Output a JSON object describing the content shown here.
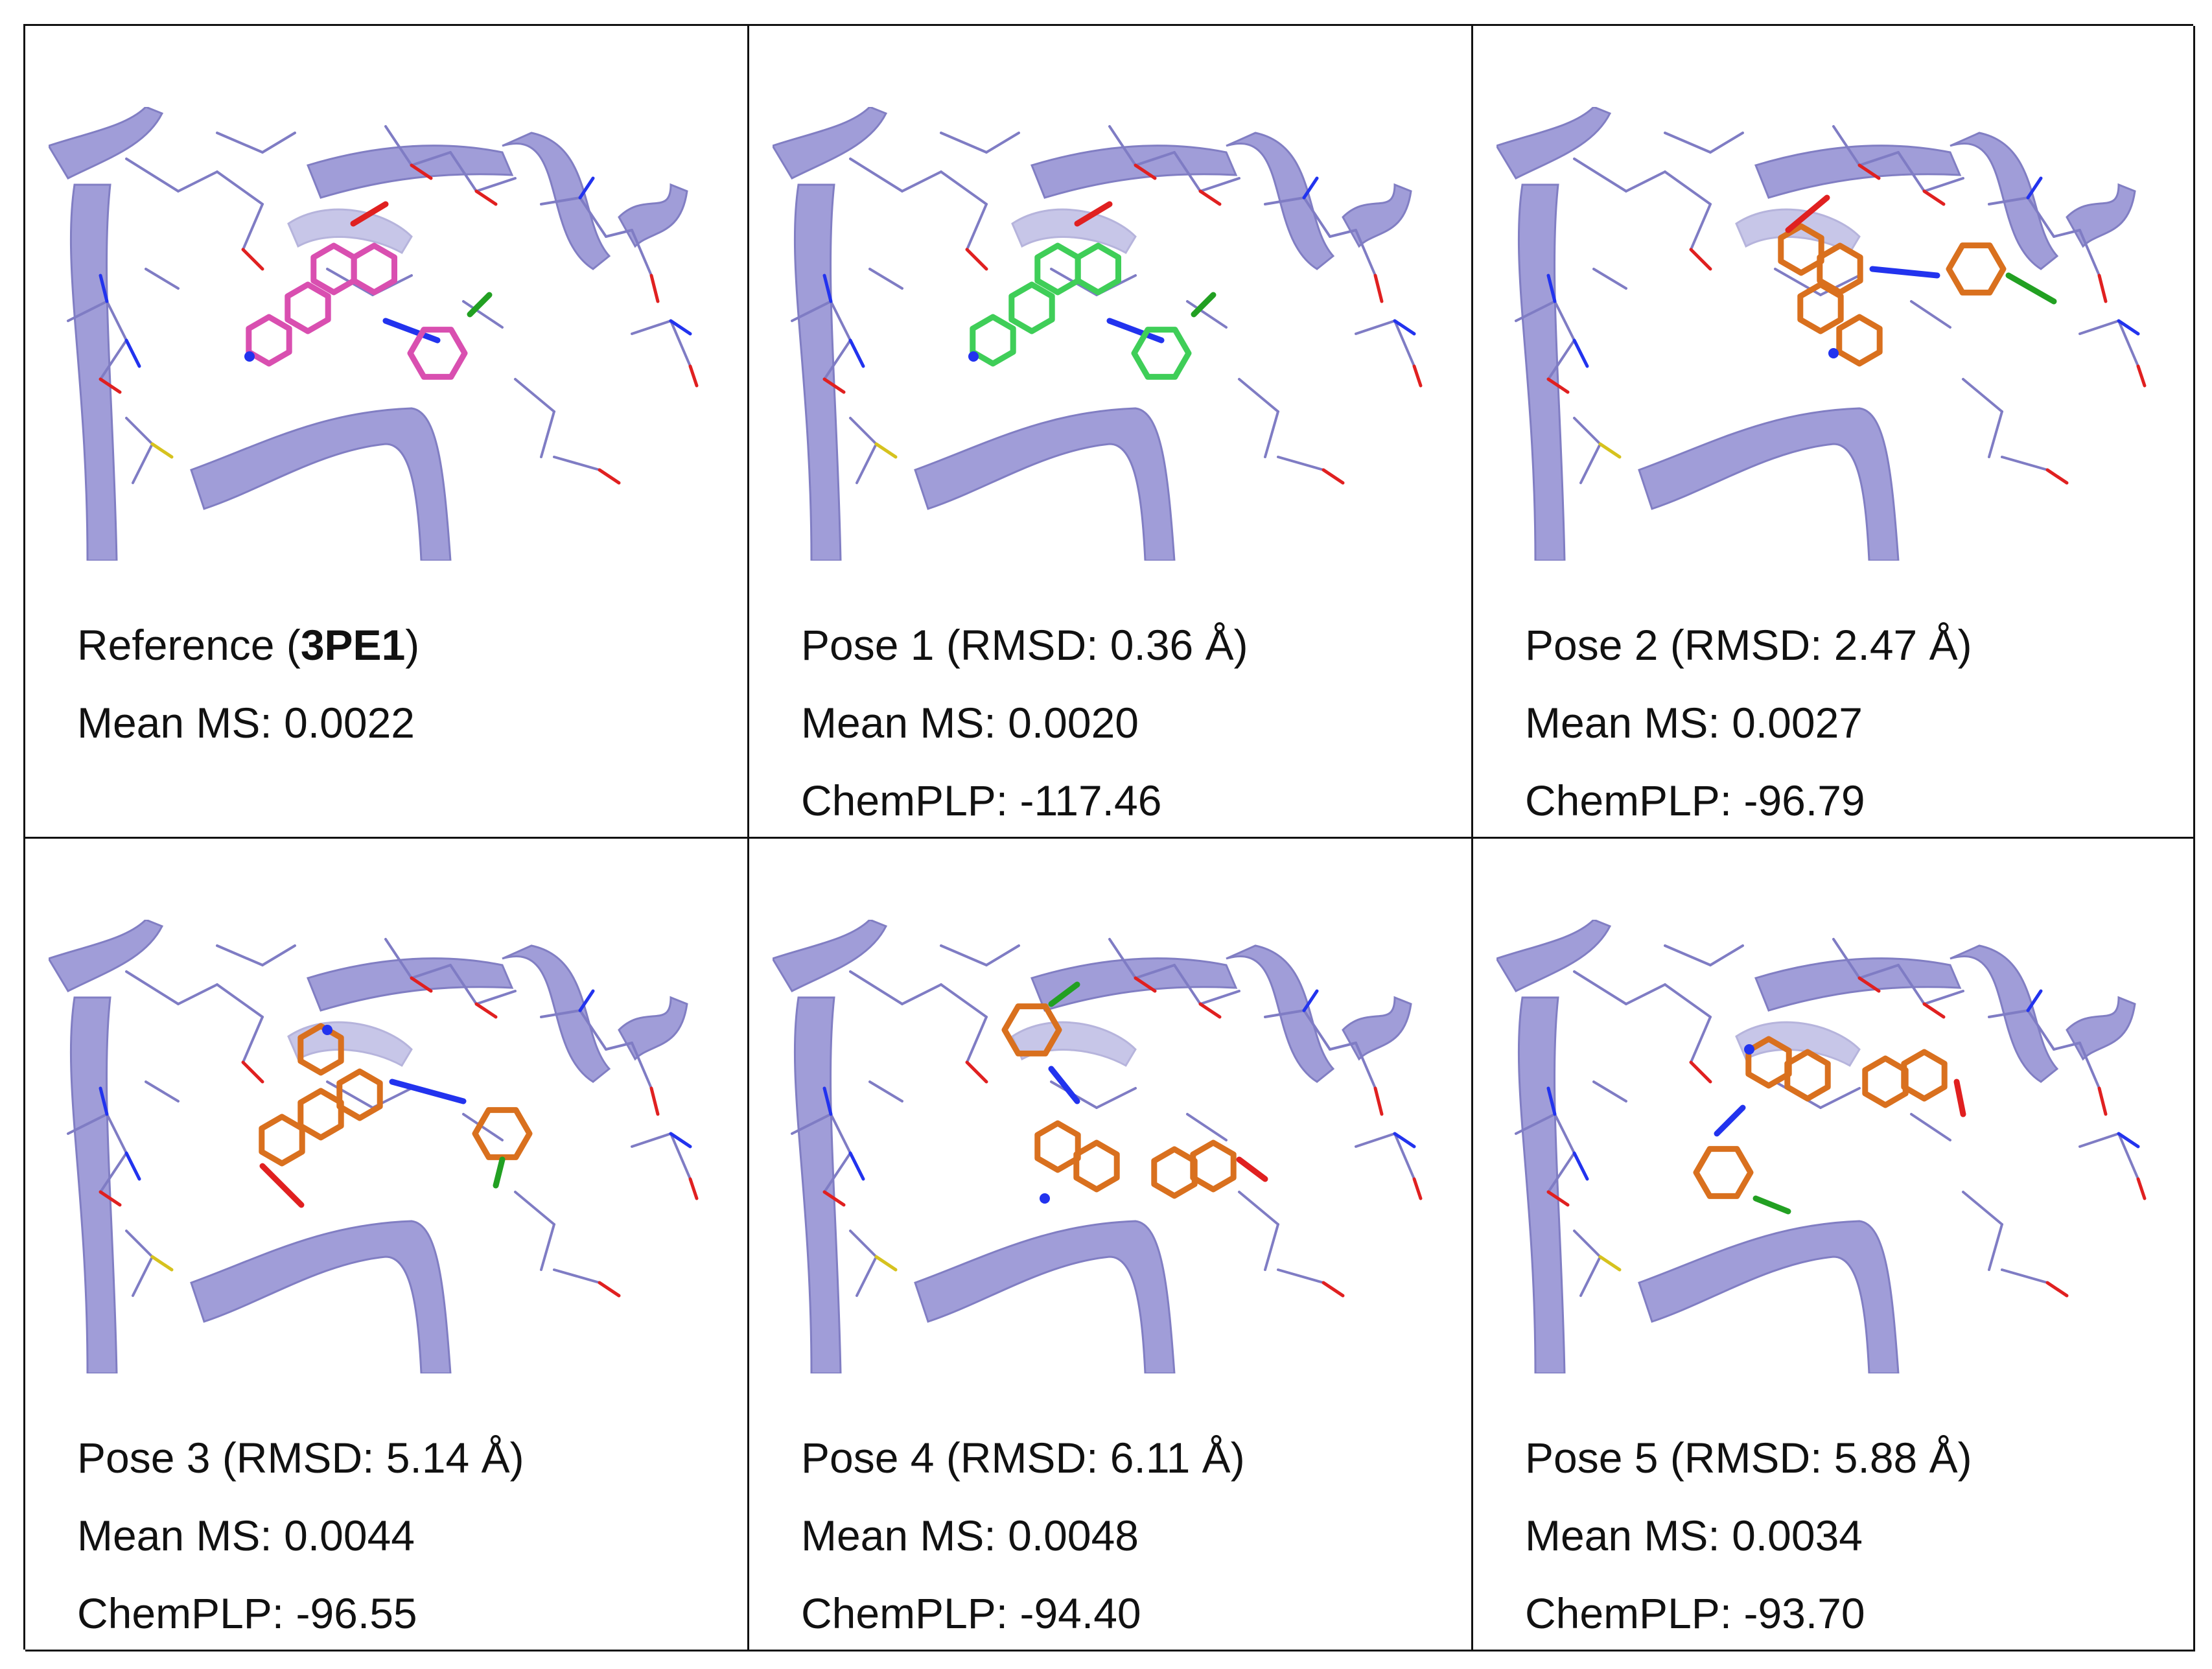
{
  "panels": [
    {
      "id": "reference",
      "title_prefix": "Reference (",
      "title_bold": "3PE1",
      "title_suffix": ")",
      "mean_ms": "Mean MS: 0.0022",
      "chemplp": "",
      "ligand_color": "#d94fb0",
      "pose": "ref"
    },
    {
      "id": "pose-1",
      "title": "Pose 1 (RMSD: 0.36 Å)",
      "mean_ms": "Mean MS: 0.0020",
      "chemplp": "ChemPLP: -117.46",
      "ligand_color": "#3fce58",
      "pose": "ref"
    },
    {
      "id": "pose-2",
      "title": "Pose 2 (RMSD: 2.47 Å)",
      "mean_ms": "Mean MS: 0.0027",
      "chemplp": "ChemPLP: -96.79",
      "ligand_color": "#d9701e",
      "pose": "p2"
    },
    {
      "id": "pose-3",
      "title": "Pose 3 (RMSD: 5.14 Å)",
      "mean_ms": "Mean MS: 0.0044",
      "chemplp": "ChemPLP: -96.55",
      "ligand_color": "#d9701e",
      "pose": "p3"
    },
    {
      "id": "pose-4",
      "title": "Pose 4 (RMSD: 6.11 Å)",
      "mean_ms": "Mean MS: 0.0048",
      "chemplp": "ChemPLP: -94.40",
      "ligand_color": "#d9701e",
      "pose": "p4"
    },
    {
      "id": "pose-5",
      "title": "Pose 5 (RMSD: 5.88 Å)",
      "mean_ms": "Mean MS: 0.0034",
      "chemplp": "ChemPLP: -93.70",
      "ligand_color": "#d9701e",
      "pose": "p5"
    }
  ],
  "colors": {
    "protein": "#9b98d6",
    "protein_stick": "#7f7cc4",
    "oxygen": "#e02020",
    "nitrogen": "#2233ee",
    "sulfur": "#d6c21e",
    "chlorine": "#22a022",
    "hydrogen": "#dddddd"
  }
}
